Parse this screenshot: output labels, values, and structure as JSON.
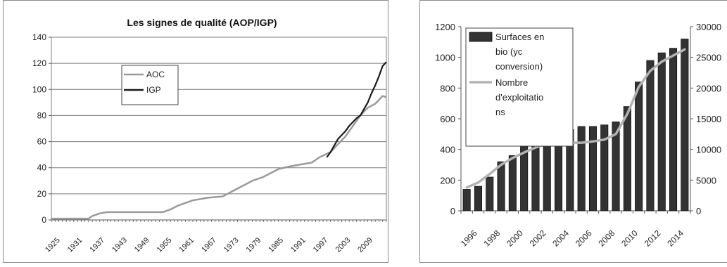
{
  "charts": {
    "left": {
      "title": "Les signes de qualité (AOP/IGP)",
      "legend": [
        "AOC",
        "IGP"
      ]
    },
    "right": {
      "legend_bar": "Surfaces en bio (yc conversion)",
      "legend_bar_lines": [
        "Surfaces en",
        "bio (yc",
        "conversion)"
      ],
      "legend_line": "Nombre d'exploitations",
      "legend_line_lines": [
        "Nombre",
        "d'exploitatio",
        "ns"
      ]
    }
  },
  "chart_data": [
    {
      "type": "line",
      "title": "Les signes de qualité (AOP/IGP)",
      "xlabel": "",
      "ylabel": "",
      "ylim": [
        0,
        140
      ],
      "y_ticks": [
        0,
        20,
        40,
        60,
        80,
        100,
        120,
        140
      ],
      "xlim": [
        1925,
        2015
      ],
      "x_tick_values": [
        1925,
        1931,
        1937,
        1943,
        1949,
        1955,
        1961,
        1967,
        1973,
        1979,
        1985,
        1991,
        1997,
        2003,
        2009
      ],
      "x_tick_labels": [
        "1925",
        "1931",
        "1937",
        "1943",
        "1949",
        "1955",
        "1961",
        "1967",
        "1973",
        "1979",
        "1985",
        "1991",
        "1997",
        "2003",
        "2009"
      ],
      "grid": true,
      "legend_position": "center",
      "series": [
        {
          "name": "AOC",
          "color": "#9a9a9a",
          "x": [
            1925,
            1935,
            1936,
            1937,
            1938,
            1940,
            1955,
            1957,
            1959,
            1961,
            1963,
            1965,
            1967,
            1971,
            1973,
            1975,
            1977,
            1979,
            1982,
            1984,
            1986,
            1989,
            1991,
            1995,
            1997,
            2000,
            2002,
            2004,
            2006,
            2008,
            2010,
            2012,
            2014,
            2015
          ],
          "y": [
            1,
            1,
            3,
            4,
            5,
            6,
            6,
            8,
            11,
            13,
            15,
            16,
            17,
            18,
            21,
            24,
            27,
            30,
            33,
            36,
            39,
            41,
            42,
            44,
            48,
            52,
            58,
            64,
            72,
            80,
            86,
            89,
            95,
            94
          ]
        },
        {
          "name": "IGP",
          "color": "#1a1a1a",
          "x": [
            1999,
            2000,
            2001,
            2002,
            2003,
            2004,
            2005,
            2006,
            2007,
            2008,
            2009,
            2010,
            2011,
            2012,
            2013,
            2014,
            2015
          ],
          "y": [
            48,
            52,
            57,
            62,
            65,
            68,
            72,
            75,
            78,
            80,
            85,
            90,
            97,
            103,
            110,
            118,
            121
          ]
        }
      ]
    },
    {
      "type": "bar",
      "title": "",
      "categories": [
        "1996",
        "1997",
        "1998",
        "1999",
        "2000",
        "2001",
        "2002",
        "2003",
        "2004",
        "2005",
        "2006",
        "2007",
        "2008",
        "2009",
        "2010",
        "2011",
        "2012",
        "2013",
        "2014",
        "2015"
      ],
      "x_tick_labels": [
        "1996",
        "1998",
        "2000",
        "2002",
        "2004",
        "2006",
        "2008",
        "2010",
        "2012",
        "2014"
      ],
      "ylim_left": [
        0,
        1200
      ],
      "y_ticks_left": [
        0,
        200,
        400,
        600,
        800,
        1000,
        1200
      ],
      "ylim_right": [
        0,
        30000
      ],
      "y_ticks_right": [
        0,
        5000,
        10000,
        15000,
        20000,
        25000,
        30000
      ],
      "y_tick_labels_right": [
        "0",
        "5000",
        "10000",
        "15000",
        "20000",
        "25000",
        "30000"
      ],
      "grid": false,
      "legend_position": "top-left",
      "series": [
        {
          "name": "Surfaces en bio (yc conversion)",
          "axis": "left",
          "type": "bar",
          "color": "#333333",
          "values": [
            140,
            160,
            220,
            320,
            360,
            420,
            470,
            520,
            560,
            530,
            550,
            550,
            560,
            580,
            680,
            840,
            980,
            1030,
            1060,
            1120
          ]
        },
        {
          "name": "Nombre d'exploitations",
          "axis": "right",
          "type": "line",
          "color": "#b3b3b3",
          "values": [
            3800,
            4600,
            6000,
            7500,
            8600,
            9500,
            10300,
            10900,
            11100,
            11100,
            11100,
            11300,
            11600,
            12500,
            15800,
            20200,
            22800,
            24300,
            25300,
            26300
          ]
        }
      ]
    }
  ]
}
